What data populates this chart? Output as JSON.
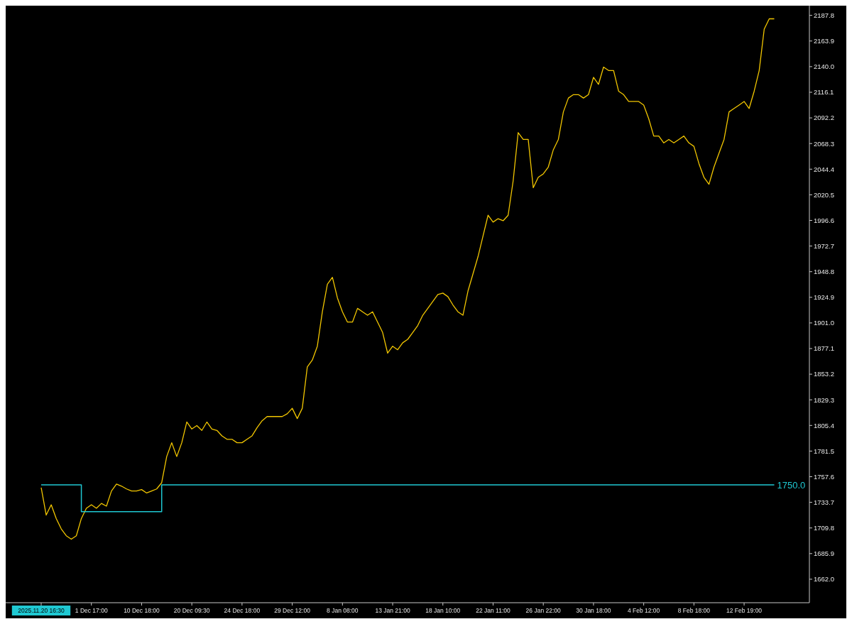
{
  "chart_data": {
    "type": "line",
    "categories": [
      "2025.11.20 16:30",
      null,
      null,
      null,
      null,
      null,
      null,
      null,
      null,
      null,
      "1 Dec 17:00",
      null,
      null,
      null,
      null,
      null,
      null,
      null,
      null,
      null,
      "10 Dec 18:00",
      null,
      null,
      null,
      null,
      null,
      null,
      null,
      null,
      null,
      "20 Dec 09:30",
      null,
      null,
      null,
      null,
      null,
      null,
      null,
      null,
      null,
      "24 Dec 18:00",
      null,
      null,
      null,
      null,
      null,
      null,
      null,
      null,
      null,
      "29 Dec 12:00",
      null,
      null,
      null,
      null,
      null,
      null,
      null,
      null,
      null,
      "8 Jan 08:00",
      null,
      null,
      null,
      null,
      null,
      null,
      null,
      null,
      null,
      "13 Jan 21:00",
      null,
      null,
      null,
      null,
      null,
      null,
      null,
      null,
      null,
      "18 Jan 10:00",
      null,
      null,
      null,
      null,
      null,
      null,
      null,
      null,
      null,
      "22 Jan 11:00",
      null,
      null,
      null,
      null,
      null,
      null,
      null,
      null,
      null,
      "26 Jan 22:00",
      null,
      null,
      null,
      null,
      null,
      null,
      null,
      null,
      null,
      "30 Jan 18:00",
      null,
      null,
      null,
      null,
      null,
      null,
      null,
      null,
      null,
      "4 Feb 12:00",
      null,
      null,
      null,
      null,
      null,
      null,
      null,
      null,
      null,
      "8 Feb 18:00",
      null,
      null,
      null,
      null,
      null,
      null,
      null,
      null,
      null,
      "12 Feb 19:00",
      null,
      null,
      null,
      null,
      null,
      null
    ],
    "series": [
      {
        "color": "#f2c600",
        "values": [
          1747.5,
          1721.8,
          1731.4,
          1718.6,
          1708.9,
          1702.5,
          1699.3,
          1702.5,
          1718.6,
          1728.2,
          1731.4,
          1728.2,
          1732.7,
          1730.1,
          1744.3,
          1750.7,
          1748.8,
          1746.2,
          1744.3,
          1744.3,
          1745.6,
          1742.4,
          1744.3,
          1746.2,
          1752,
          1776.4,
          1789.3,
          1776.4,
          1789.3,
          1808.6,
          1802.1,
          1805.3,
          1800.8,
          1808.6,
          1802.1,
          1800.8,
          1795.7,
          1792.5,
          1792.5,
          1789.3,
          1789.3,
          1792.5,
          1795.7,
          1803.4,
          1809.8,
          1813.7,
          1813.7,
          1813.7,
          1813.7,
          1816.3,
          1821.4,
          1811.8,
          1821.4,
          1860,
          1866.4,
          1879.3,
          1911.4,
          1937.1,
          1943.5,
          1924.3,
          1911.4,
          1901.8,
          1901.8,
          1914.6,
          1911.4,
          1908.2,
          1911.4,
          1901.8,
          1892.1,
          1872.8,
          1879.3,
          1876,
          1882.5,
          1885.7,
          1892.1,
          1898.6,
          1908.2,
          1914.6,
          1921,
          1927.5,
          1928.8,
          1925.5,
          1917.8,
          1911.4,
          1908.2,
          1930.7,
          1946.8,
          1962.8,
          1982.1,
          2001.4,
          1995,
          1998.2,
          1996.3,
          2001.4,
          2033.5,
          2078.5,
          2072.1,
          2072.1,
          2027.1,
          2036.8,
          2040,
          2046.4,
          2062.5,
          2072.1,
          2097.8,
          2110.7,
          2113.9,
          2113.9,
          2110.7,
          2113.9,
          2130,
          2123.5,
          2139.6,
          2136.4,
          2136.4,
          2117.1,
          2113.9,
          2107.5,
          2107.5,
          2107.5,
          2104.2,
          2091.4,
          2075.3,
          2075.3,
          2068.9,
          2072.1,
          2068.9,
          2072.1,
          2075.3,
          2068.9,
          2065.7,
          2049.6,
          2036.8,
          2030.3,
          2046.4,
          2059.3,
          2072.1,
          2097.8,
          2101,
          2104.2,
          2107.5,
          2101,
          2117.1,
          2136.4,
          2175,
          2184.6,
          2184.6
        ]
      },
      {
        "type": "step",
        "color": "#1fc8d2",
        "values": [
          1750,
          1750,
          1750,
          1750,
          1750,
          1750,
          1750,
          1750,
          1725,
          1725,
          1725,
          1725,
          1725,
          1725,
          1725,
          1725,
          1725,
          1725,
          1725,
          1725,
          1725,
          1725,
          1725,
          1725,
          1750,
          1750,
          1750,
          1750,
          1750,
          1750,
          1750,
          1750,
          1750,
          1750,
          1750,
          1750,
          1750,
          1750,
          1750,
          1750,
          1750,
          1750,
          1750,
          1750,
          1750,
          1750,
          1750,
          1750,
          1750,
          1750,
          1750,
          1750,
          1750,
          1750,
          1750,
          1750,
          1750,
          1750,
          1750,
          1750,
          1750,
          1750,
          1750,
          1750,
          1750,
          1750,
          1750,
          1750,
          1750,
          1750,
          1750,
          1750,
          1750,
          1750,
          1750,
          1750,
          1750,
          1750,
          1750,
          1750,
          1750,
          1750,
          1750,
          1750,
          1750,
          1750,
          1750,
          1750,
          1750,
          1750,
          1750,
          1750,
          1750,
          1750,
          1750,
          1750,
          1750,
          1750,
          1750,
          1750,
          1750,
          1750,
          1750,
          1750,
          1750,
          1750,
          1750,
          1750,
          1750,
          1750,
          1750,
          1750,
          1750,
          1750,
          1750,
          1750,
          1750,
          1750,
          1750,
          1750,
          1750,
          1750,
          1750,
          1750,
          1750,
          1750,
          1750,
          1750,
          1750,
          1750,
          1750,
          1750,
          1750,
          1750,
          1750,
          1750,
          1750,
          1750,
          1750,
          1750,
          1750,
          1750,
          1750,
          1750,
          1750,
          1750,
          1750
        ]
      }
    ],
    "annotations": [
      "1750.0"
    ],
    "ylim": [
      1640.1,
      2194.2
    ],
    "yticks": [
      {
        "value": 1662,
        "label": "1662.0"
      },
      1685.9,
      1709.8,
      1733.7,
      1757.6,
      1781.5,
      1805.4,
      1829.3,
      1853.2,
      1877.1,
      {
        "value": 1901,
        "label": "1901.0"
      },
      1924.9,
      1948.8,
      1972.7,
      1996.6,
      2020.5,
      2044.4,
      2068.3,
      2092.2,
      2116.1,
      {
        "value": 2140,
        "label": "2140.0"
      },
      2163.9,
      2187.8
    ]
  }
}
